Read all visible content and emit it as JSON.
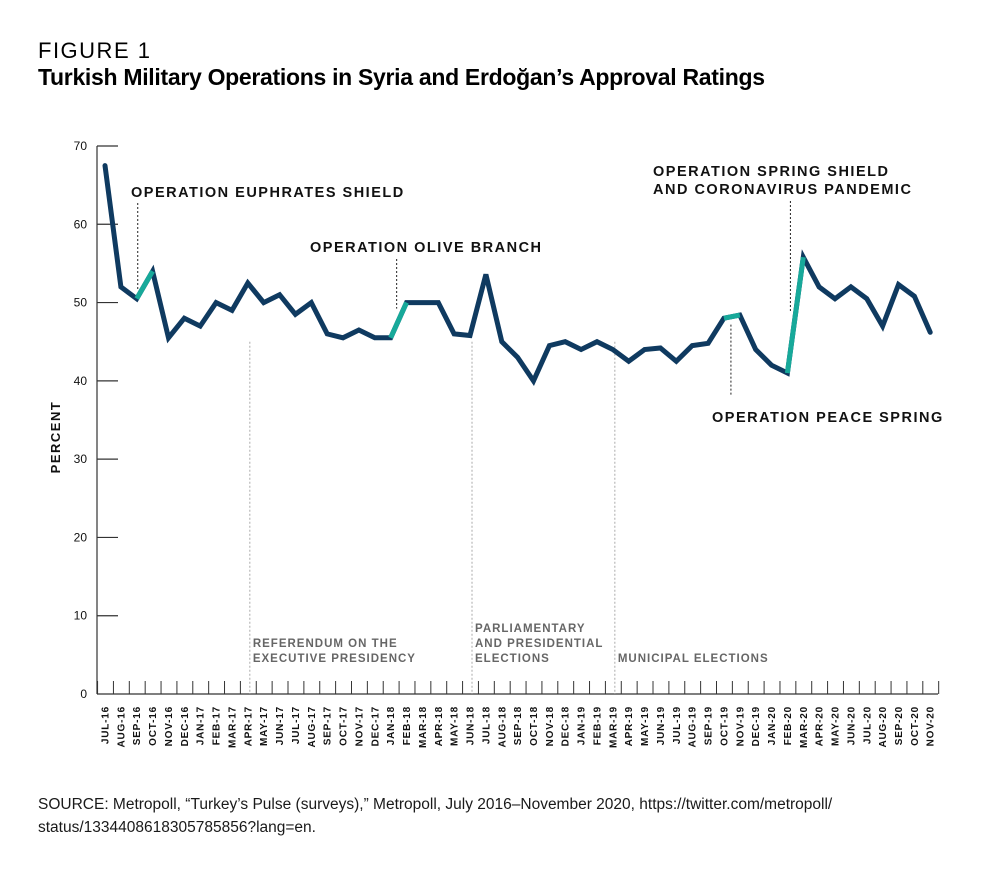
{
  "figure": {
    "label": "FIGURE 1",
    "title": "Turkish Military Operations in Syria and Erdoğan’s Approval Ratings"
  },
  "source": "SOURCE: Metropoll, “Turkey’s Pulse (surveys),” Metropoll, July 2016–November 2020, https://twitter.com/metropoll/ status/1334408618305785856?lang=en.",
  "colors": {
    "line": "#0f3a60",
    "highlight": "#17a99a",
    "axis": "#333333",
    "event_text": "#666666"
  },
  "chart_data": {
    "type": "line",
    "title": "Turkish Military Operations in Syria and Erdoğan’s Approval Ratings",
    "xlabel": "",
    "ylabel": "PERCENT",
    "ylim": [
      0,
      70
    ],
    "yticks": [
      0,
      10,
      20,
      30,
      40,
      50,
      60,
      70
    ],
    "grid": false,
    "x": [
      "JUL-16",
      "AUG-16",
      "SEP-16",
      "OCT-16",
      "NOV-16",
      "DEC-16",
      "JAN-17",
      "FEB-17",
      "MAR-17",
      "APR-17",
      "MAY-17",
      "JUN-17",
      "JUL-17",
      "AUG-17",
      "SEP-17",
      "OCT-17",
      "NOV-17",
      "DEC-17",
      "JAN-18",
      "FEB-18",
      "MAR-18",
      "APR-18",
      "MAY-18",
      "JUN-18",
      "JUL-18",
      "AUG-18",
      "SEP-18",
      "OCT-18",
      "NOV-18",
      "DEC-18",
      "JAN-19",
      "FEB-19",
      "MAR-19",
      "APR-19",
      "MAY-19",
      "JUN-19",
      "JUL-19",
      "AUG-19",
      "SEP-19",
      "OCT-19",
      "NOV-19",
      "DEC-19",
      "JAN-20",
      "FEB-20",
      "MAR-20",
      "APR-20",
      "MAY-20",
      "JUN-20",
      "JUL-20",
      "AUG-20",
      "SEP-20",
      "OCT-20",
      "NOV-20"
    ],
    "series": [
      {
        "name": "Erdoğan approval rating",
        "values": [
          67.5,
          52,
          50.5,
          54,
          45.5,
          48,
          47,
          50,
          49,
          52.5,
          50,
          51,
          48.5,
          50,
          46,
          45.5,
          46.5,
          45.5,
          45.5,
          50,
          50,
          50,
          46,
          45.8,
          53.6,
          45,
          43,
          40,
          44.5,
          45,
          44,
          45,
          44,
          42.5,
          44,
          44.2,
          42.5,
          44.5,
          44.8,
          48,
          48.4,
          44,
          42,
          41,
          55.8,
          52,
          50.5,
          52,
          50.5,
          47,
          52.3,
          50.8,
          46.2
        ]
      }
    ],
    "highlighted_segments": [
      {
        "from": "SEP-16",
        "to": "OCT-16"
      },
      {
        "from": "JAN-18",
        "to": "FEB-18"
      },
      {
        "from": "OCT-19",
        "to": "NOV-19"
      },
      {
        "from": "FEB-20",
        "to": "MAR-20"
      }
    ],
    "operations": [
      {
        "label_lines": [
          "OPERATION EUPHRATES SHIELD"
        ],
        "month": "SEP-16",
        "position": "above"
      },
      {
        "label_lines": [
          "OPERATION OLIVE BRANCH"
        ],
        "month": "JAN-18",
        "position": "above"
      },
      {
        "label_lines": [
          "OPERATION SPRING SHIELD",
          "AND CORONAVIRUS PANDEMIC"
        ],
        "month": "FEB-20",
        "position": "above"
      },
      {
        "label_lines": [
          "OPERATION PEACE SPRING"
        ],
        "month": "OCT-19",
        "position": "below"
      }
    ],
    "events": [
      {
        "label_lines": [
          "REFERENDUM ON THE",
          "EXECUTIVE PRESIDENCY"
        ],
        "month": "APR-17"
      },
      {
        "label_lines": [
          "PARLIAMENTARY",
          "AND PRESIDENTIAL",
          "ELECTIONS"
        ],
        "month": "JUN-18"
      },
      {
        "label_lines": [
          "MUNICIPAL ELECTIONS"
        ],
        "month": "MAR-19"
      }
    ]
  }
}
